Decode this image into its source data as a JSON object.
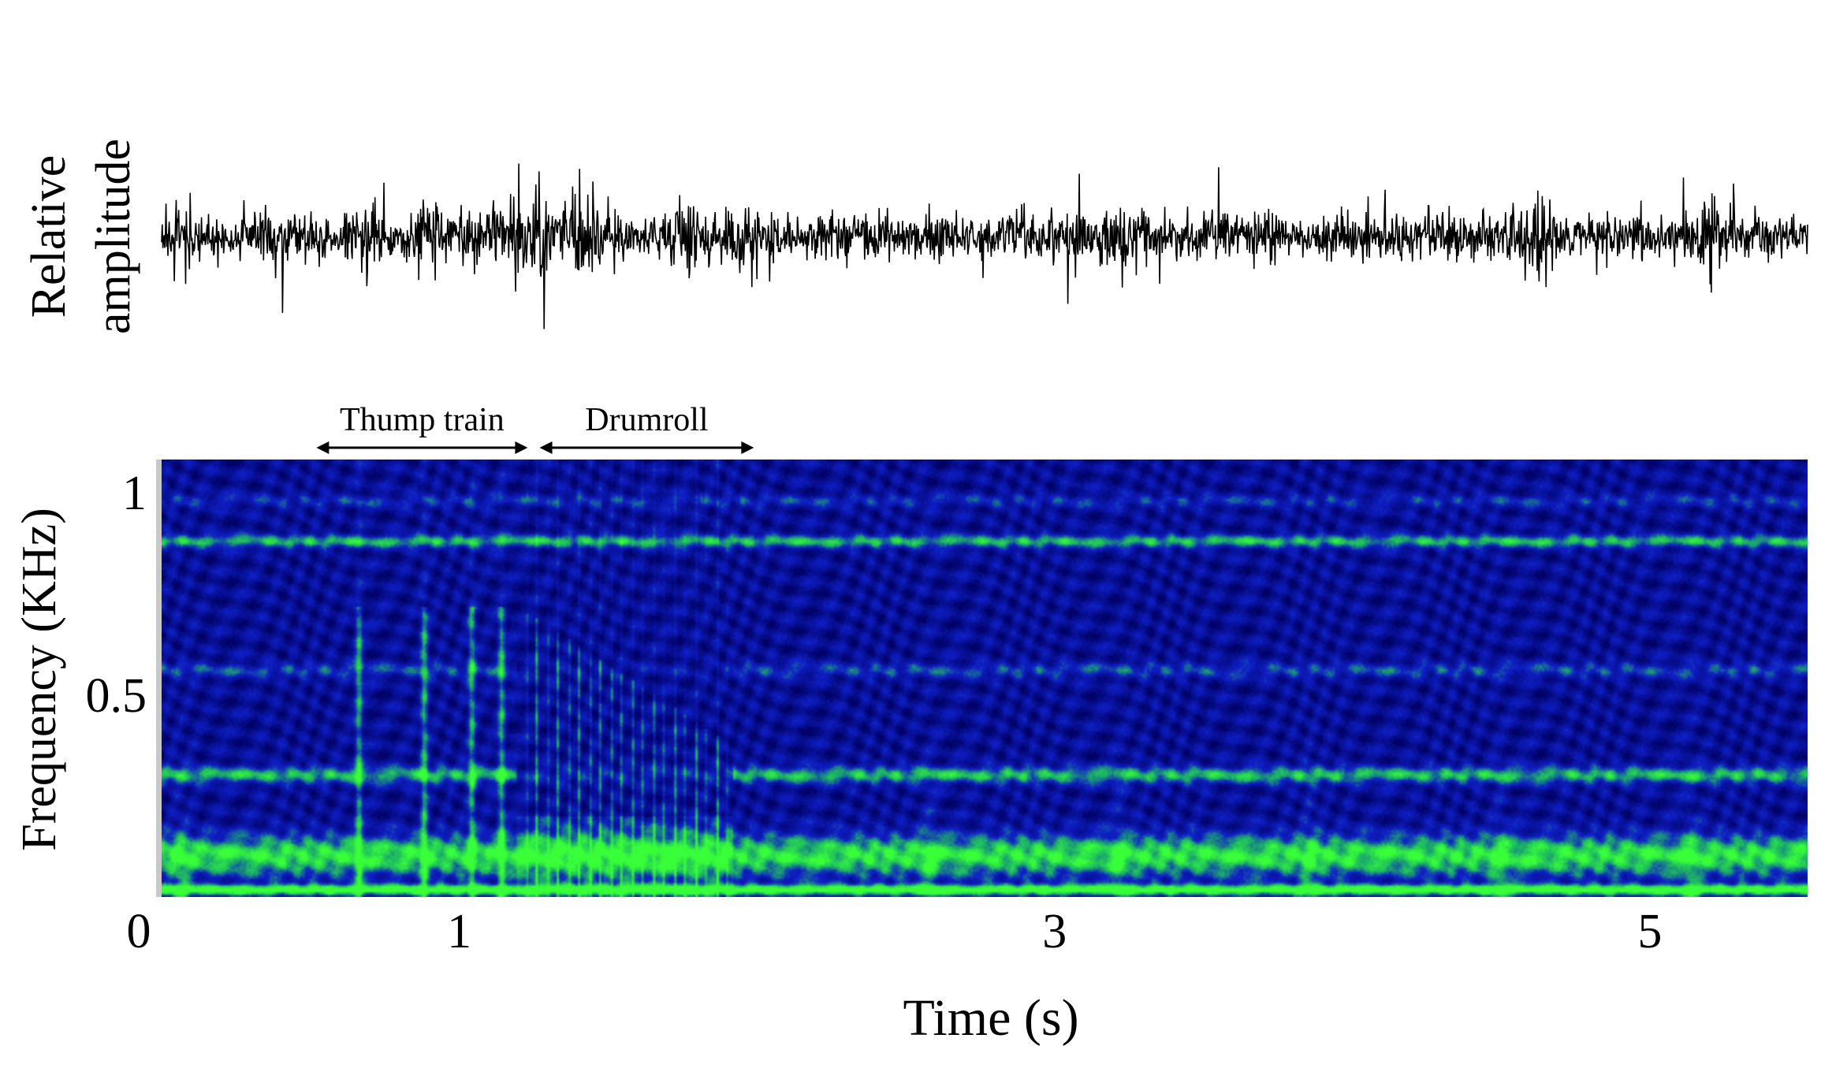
{
  "figure": {
    "waveform_ylabel_line1": "Relative",
    "waveform_ylabel_line2": "amplitude",
    "spectrogram_ylabel": "Frequency (KHz)",
    "xlabel": "Time (s)"
  },
  "colors": {
    "background": "#000060",
    "mid": "#1020c8",
    "band": "#1eb864",
    "bright": "#39ff39",
    "waveform": "#000000"
  },
  "annotations": [
    {
      "label": "Thump train",
      "t_start": 0.52,
      "t_end": 1.23
    },
    {
      "label": "Drumroll",
      "t_start": 1.27,
      "t_end": 1.99
    }
  ],
  "chart_data": [
    {
      "type": "line",
      "panel": "waveform",
      "title": "",
      "ylabel": "Relative amplitude",
      "xlim": [
        0,
        5.53
      ],
      "grid": false,
      "note_levels": {
        "baseline_amplitude": 0.55,
        "burst_times": [
          0.06,
          0.68,
          0.89,
          1.15,
          1.25,
          1.33,
          1.45,
          1.75,
          1.95,
          3.24,
          4.62,
          5.22
        ]
      }
    },
    {
      "type": "heatmap",
      "panel": "spectrogram",
      "title": "",
      "xlabel": "Time (s)",
      "ylabel": "Frequency (KHz)",
      "xlim": [
        0,
        5.53
      ],
      "ylim": [
        0,
        1.08
      ],
      "xticks": [
        {
          "value": 0,
          "label": "0"
        },
        {
          "value": 1,
          "label": "1"
        },
        {
          "value": 3,
          "label": "3"
        },
        {
          "value": 5,
          "label": "5"
        }
      ],
      "yticks": [
        {
          "value": 0.5,
          "label": "0.5"
        },
        {
          "value": 1,
          "label": "1"
        }
      ],
      "horizontal_bands_khz": [
        {
          "f": 0.015,
          "level": 1.0,
          "width": 0.012
        },
        {
          "f": 0.1,
          "level": 0.7,
          "width": 0.05
        },
        {
          "f": 0.3,
          "level": 0.55,
          "width": 0.02
        },
        {
          "f": 0.56,
          "level": 0.28,
          "width": 0.018
        },
        {
          "f": 0.88,
          "level": 0.55,
          "width": 0.015
        },
        {
          "f": 0.98,
          "level": 0.22,
          "width": 0.015
        }
      ],
      "thump_pulses_s": [
        0.66,
        0.88,
        1.04,
        1.14
      ],
      "drumroll_span_s": [
        1.19,
        1.92
      ],
      "faint_pulses_s": [
        0.06,
        2.58,
        3.22,
        3.86,
        4.5,
        5.14
      ]
    }
  ]
}
